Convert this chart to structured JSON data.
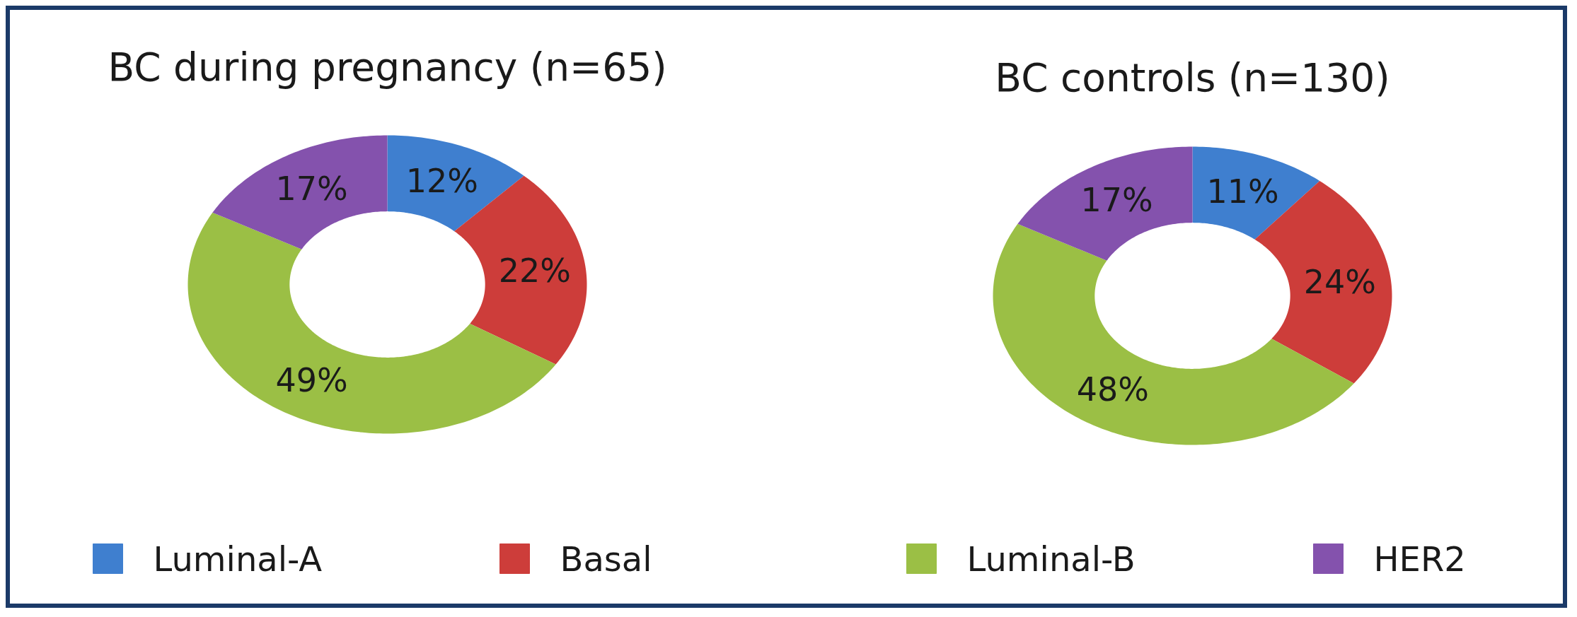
{
  "chart_data": {
    "type": "donut",
    "categories": [
      "Luminal-A",
      "Basal",
      "Luminal-B",
      "HER2"
    ],
    "colors": [
      "#3f7fcf",
      "#cd3d3a",
      "#9bbf45",
      "#8452ad"
    ],
    "series": [
      {
        "name": "BC during pregnancy (n=65)",
        "values": [
          12,
          22,
          49,
          17
        ],
        "value_labels": [
          "12%",
          "22%",
          "49%",
          "17%"
        ]
      },
      {
        "name": "BC controls (n=130)",
        "values": [
          11,
          24,
          48,
          17
        ],
        "value_labels": [
          "11%",
          "24%",
          "48%",
          "17%"
        ]
      }
    ],
    "legend": "bottom"
  }
}
